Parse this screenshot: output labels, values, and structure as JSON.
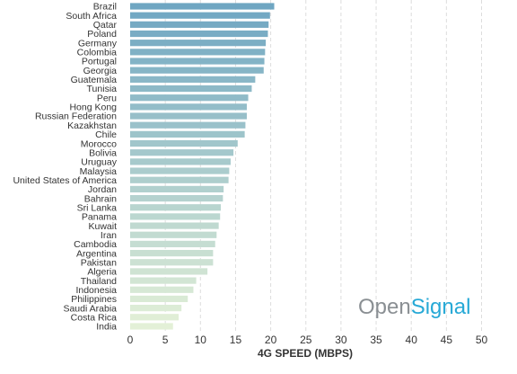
{
  "chart_data": {
    "type": "bar",
    "orientation": "horizontal",
    "categories": [
      "Brazil",
      "South Africa",
      "Qatar",
      "Poland",
      "Germany",
      "Colombia",
      "Portugal",
      "Georgia",
      "Guatemala",
      "Tunisia",
      "Peru",
      "Hong Kong",
      "Russian Federation",
      "Kazakhstan",
      "Chile",
      "Morocco",
      "Bolivia",
      "Uruguay",
      "Malaysia",
      "United States of America",
      "Jordan",
      "Bahrain",
      "Sri Lanka",
      "Panama",
      "Kuwait",
      "Iran",
      "Cambodia",
      "Argentina",
      "Pakistan",
      "Algeria",
      "Thailand",
      "Indonesia",
      "Philippines",
      "Saudi Arabia",
      "Costa Rica",
      "India"
    ],
    "values": [
      20.5,
      19.9,
      19.7,
      19.6,
      19.3,
      19.2,
      19.1,
      19.0,
      17.8,
      17.3,
      16.8,
      16.6,
      16.6,
      16.4,
      16.3,
      15.3,
      14.7,
      14.3,
      14.1,
      14.0,
      13.3,
      13.2,
      12.9,
      12.8,
      12.6,
      12.3,
      12.1,
      11.8,
      11.8,
      11.0,
      9.4,
      9.0,
      8.2,
      7.3,
      6.9,
      6.1
    ],
    "xlabel": "4G SPEED (MBPS)",
    "xticks": [
      0,
      5,
      10,
      15,
      20,
      25,
      30,
      35,
      40,
      45,
      50
    ],
    "xlim": [
      0,
      50
    ],
    "grid": "vertical dashed",
    "colors": {
      "start": "#6fa6c2",
      "end": "#e3f0d7"
    }
  },
  "logo": {
    "part1": "Open",
    "part2": "Signal",
    "color1": "#8a8f93",
    "color2": "#27a9d6"
  }
}
